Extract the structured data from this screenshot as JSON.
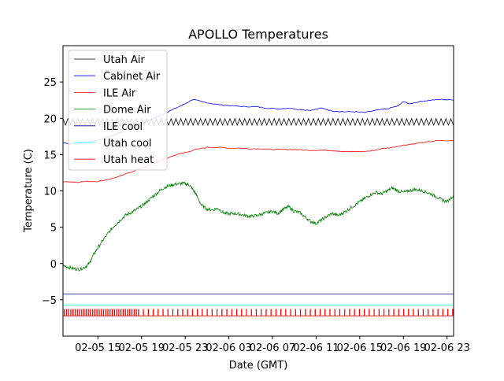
{
  "chart_data": {
    "type": "line",
    "title": "APOLLO Temperatures",
    "xlabel": "Date (GMT)",
    "ylabel": "Temperature (C)",
    "xlim": [
      11.8,
      47.6
    ],
    "ylim": [
      -10,
      30
    ],
    "x_unit": "hours since 02-05 00 GMT",
    "x_ticks": [
      {
        "value": 15,
        "label": "02-05 15"
      },
      {
        "value": 19,
        "label": "02-05 19"
      },
      {
        "value": 23,
        "label": "02-05 23"
      },
      {
        "value": 27,
        "label": "02-06 03"
      },
      {
        "value": 31,
        "label": "02-06 07"
      },
      {
        "value": 35,
        "label": "02-06 11"
      },
      {
        "value": 39,
        "label": "02-06 15"
      },
      {
        "value": 43,
        "label": "02-06 19"
      },
      {
        "value": 47,
        "label": "02-06 23"
      }
    ],
    "y_ticks": [
      {
        "value": -5,
        "label": "−5"
      },
      {
        "value": 0,
        "label": "0"
      },
      {
        "value": 5,
        "label": "5"
      },
      {
        "value": 10,
        "label": "10"
      },
      {
        "value": 15,
        "label": "15"
      },
      {
        "value": 20,
        "label": "20"
      },
      {
        "value": 25,
        "label": "25"
      }
    ],
    "legend_position": "upper-left",
    "series": [
      {
        "name": "Utah Air",
        "color": "#000000",
        "style": "sawtooth",
        "x": [
          11.8,
          47.6
        ],
        "y": [
          19.5,
          19.5
        ],
        "amplitude": 0.45,
        "period": 0.45
      },
      {
        "name": "Cabinet Air",
        "color": "#0000ff",
        "style": "line",
        "x": [
          11.8,
          13.0,
          14.0,
          15.0,
          16.0,
          17.0,
          18.0,
          19.0,
          20.0,
          21.0,
          22.0,
          23.0,
          23.7,
          24.5,
          25.5,
          26.5,
          27.5,
          28.5,
          29.5,
          30.5,
          31.5,
          32.5,
          33.5,
          34.5,
          35.5,
          36.5,
          37.5,
          38.5,
          39.5,
          40.5,
          41.5,
          42.5,
          43.0,
          43.5,
          44.5,
          45.5,
          46.5,
          47.6
        ],
        "y": [
          16.6,
          16.5,
          16.7,
          17.0,
          17.4,
          18.0,
          18.7,
          19.3,
          19.9,
          20.6,
          21.3,
          22.0,
          22.6,
          22.3,
          22.0,
          21.8,
          21.7,
          21.6,
          21.6,
          21.4,
          21.3,
          21.4,
          21.2,
          21.1,
          21.4,
          21.0,
          20.9,
          20.9,
          20.8,
          21.1,
          21.3,
          21.7,
          22.3,
          22.0,
          22.3,
          22.5,
          22.6,
          22.5
        ]
      },
      {
        "name": "ILE Air",
        "color": "#ff0000",
        "style": "line",
        "x": [
          11.8,
          13.0,
          14.0,
          15.0,
          16.0,
          17.0,
          18.0,
          19.0,
          20.0,
          21.0,
          22.0,
          23.0,
          24.0,
          25.0,
          26.0,
          27.0,
          28.0,
          29.0,
          30.0,
          31.0,
          32.0,
          33.0,
          34.0,
          35.0,
          36.0,
          37.0,
          38.0,
          39.0,
          40.0,
          41.0,
          42.0,
          43.0,
          44.0,
          45.0,
          46.0,
          47.6
        ],
        "y": [
          11.3,
          11.2,
          11.3,
          11.3,
          11.6,
          12.0,
          12.6,
          13.1,
          13.7,
          14.3,
          14.9,
          15.3,
          15.7,
          16.0,
          16.0,
          15.9,
          15.9,
          15.8,
          15.8,
          15.7,
          15.7,
          15.7,
          15.6,
          15.6,
          15.6,
          15.5,
          15.4,
          15.4,
          15.5,
          15.8,
          16.0,
          16.3,
          16.5,
          16.7,
          16.9,
          16.9
        ]
      },
      {
        "name": "Dome Air",
        "color": "#008000",
        "style": "noisy",
        "x": [
          11.8,
          12.3,
          12.8,
          13.3,
          13.8,
          14.2,
          14.6,
          15.0,
          15.5,
          16.0,
          16.5,
          17.0,
          17.5,
          18.0,
          18.5,
          19.0,
          19.5,
          20.0,
          20.5,
          21.0,
          21.5,
          22.0,
          22.5,
          23.0,
          23.4,
          23.7,
          24.0,
          24.5,
          25.0,
          25.5,
          26.0,
          26.5,
          27.0,
          27.5,
          28.0,
          28.5,
          29.0,
          29.5,
          30.0,
          30.5,
          31.0,
          31.5,
          32.0,
          32.5,
          33.0,
          33.5,
          34.0,
          34.5,
          35.0,
          35.5,
          36.0,
          36.5,
          37.0,
          37.5,
          38.0,
          38.5,
          39.0,
          39.5,
          40.0,
          40.5,
          41.0,
          41.5,
          42.0,
          42.5,
          43.0,
          43.5,
          44.0,
          44.5,
          45.0,
          45.5,
          46.0,
          46.5,
          47.0,
          47.6
        ],
        "y": [
          -0.3,
          -0.5,
          -0.7,
          -0.8,
          -0.5,
          0.0,
          1.2,
          2.2,
          3.3,
          4.3,
          5.2,
          5.9,
          6.6,
          7.0,
          7.4,
          7.9,
          8.5,
          9.2,
          9.8,
          10.4,
          10.7,
          10.9,
          11.0,
          11.0,
          10.8,
          10.2,
          9.5,
          8.0,
          7.5,
          7.4,
          7.6,
          7.0,
          6.8,
          6.9,
          6.8,
          6.6,
          6.5,
          6.6,
          6.8,
          7.0,
          7.2,
          6.9,
          7.5,
          7.8,
          7.2,
          7.0,
          6.4,
          5.8,
          5.5,
          6.0,
          6.5,
          6.9,
          6.6,
          7.0,
          7.5,
          8.0,
          8.5,
          9.0,
          9.5,
          9.8,
          9.6,
          10.0,
          10.4,
          10.0,
          9.8,
          10.0,
          10.2,
          10.1,
          9.9,
          9.6,
          9.2,
          8.8,
          8.5,
          9.4
        ]
      },
      {
        "name": "ILE cool",
        "color": "#00008b",
        "style": "flat",
        "x": [
          11.8,
          47.6
        ],
        "y": [
          -4.2,
          -4.2
        ]
      },
      {
        "name": "Utah cool",
        "color": "#00ffff",
        "style": "flat",
        "x": [
          11.8,
          47.6
        ],
        "y": [
          -5.7,
          -5.7
        ]
      },
      {
        "name": "Utah heat",
        "color": "#ff0000",
        "style": "pulse",
        "x": [
          11.8,
          47.6
        ],
        "low": -7.2,
        "high": -6.3,
        "pulses_dense_until": 18.5,
        "dense_period": 0.2,
        "sparse_period": 0.45
      }
    ]
  }
}
